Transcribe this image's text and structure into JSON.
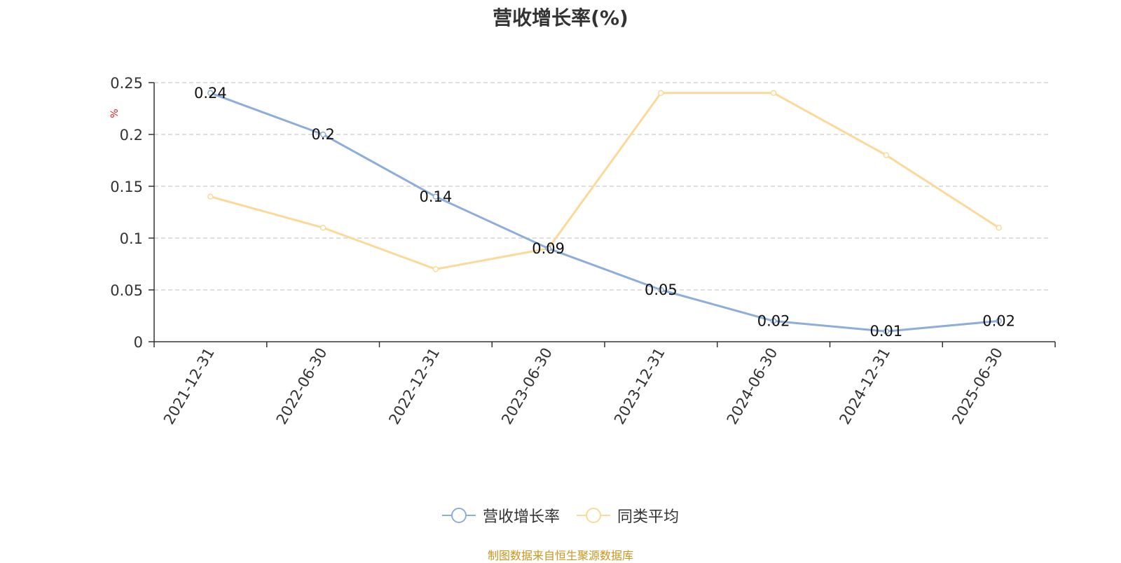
{
  "chart_data": {
    "type": "line",
    "title": "营收增长率(%)",
    "ylabel": "%",
    "xlabel": "",
    "categories": [
      "2021-12-31",
      "2022-06-30",
      "2022-12-31",
      "2023-06-30",
      "2023-12-31",
      "2024-06-30",
      "2024-12-31",
      "2025-06-30"
    ],
    "ylim": [
      0,
      0.25
    ],
    "yticks": [
      "0",
      "0.05",
      "0.1",
      "0.15",
      "0.2",
      "0.25"
    ],
    "grid": true,
    "legend_position": "bottom-center",
    "series": [
      {
        "name": "营收增长率",
        "color": "#8eaddb",
        "values": [
          0.24,
          0.2,
          0.14,
          0.09,
          0.05,
          0.02,
          0.01,
          0.02
        ],
        "labels": [
          "0.24",
          "0.2",
          "0.14",
          "0.09",
          "0.05",
          "0.02",
          "0.01",
          "0.02"
        ]
      },
      {
        "name": "同类平均",
        "color": "#fbd999",
        "values": [
          0.14,
          0.11,
          0.07,
          0.09,
          0.24,
          0.24,
          0.18,
          0.11
        ]
      }
    ]
  },
  "source_note": "制图数据来自恒生聚源数据库",
  "colors": {
    "source_note": "#c8961e",
    "ylabel": "#e02020",
    "axis": "#333333",
    "grid": "#cccccc"
  }
}
